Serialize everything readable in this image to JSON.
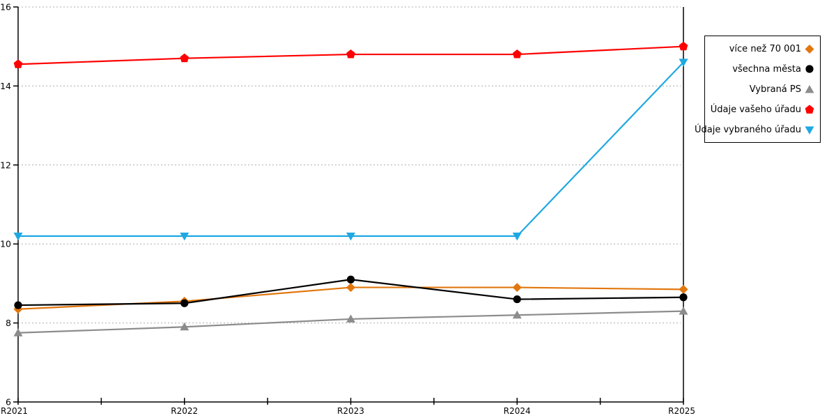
{
  "chart_data": {
    "type": "line",
    "title": "",
    "xlabel": "",
    "ylabel": "",
    "categories": [
      "R2021",
      "R2022",
      "R2023",
      "R2024",
      "R2025"
    ],
    "series": [
      {
        "name": "více než 70 001",
        "marker": "diamond",
        "color": "#E1770E",
        "values": [
          8.35,
          8.55,
          8.9,
          8.9,
          8.85
        ]
      },
      {
        "name": "všechna města",
        "marker": "circle",
        "color": "#000000",
        "values": [
          8.45,
          8.5,
          9.1,
          8.6,
          8.65
        ]
      },
      {
        "name": "Vybraná PS",
        "marker": "triangle-up",
        "color": "#8C8C8C",
        "values": [
          7.75,
          7.9,
          8.1,
          8.2,
          8.3
        ]
      },
      {
        "name": "Údaje vašeho úřadu",
        "marker": "pentagon",
        "color": "#FF0000",
        "values": [
          14.55,
          14.7,
          14.8,
          14.8,
          15.0
        ]
      },
      {
        "name": "Údaje vybraného úřadu",
        "marker": "triangle-down",
        "color": "#1FA8E2",
        "values": [
          10.2,
          10.2,
          10.2,
          10.2,
          14.6
        ]
      }
    ],
    "ylim": [
      6,
      16
    ],
    "yticks": [
      6,
      8,
      10,
      12,
      14,
      16
    ],
    "grid": "dotted-horizontal",
    "gridline_color": "#ADADAD",
    "axis_color": "#000000",
    "legend_position": "right"
  }
}
